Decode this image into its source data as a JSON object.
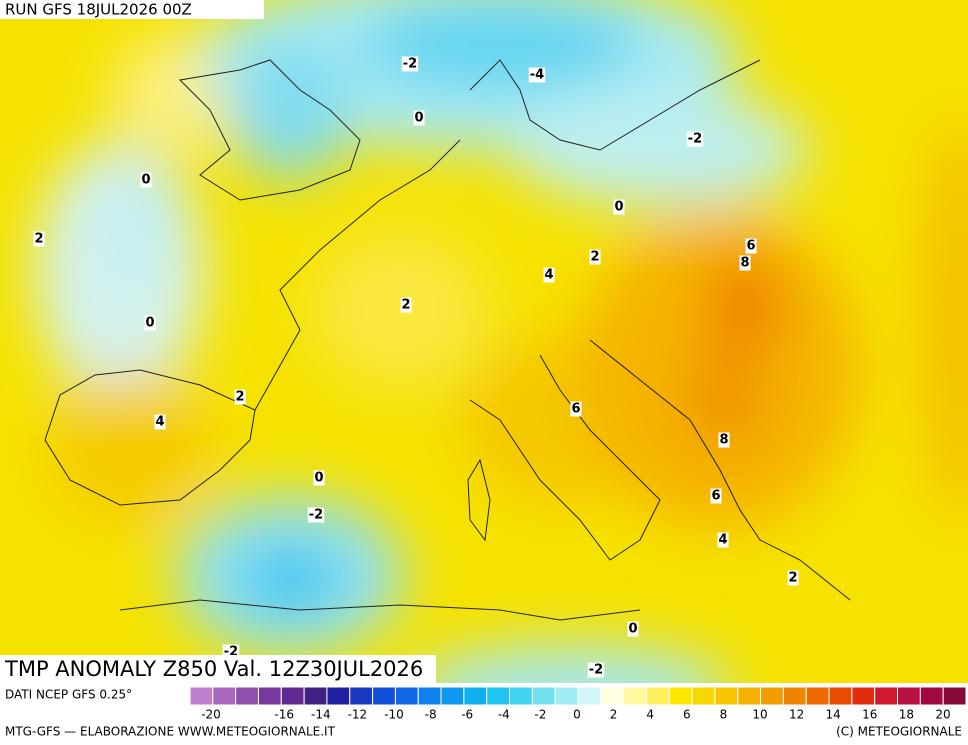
{
  "header": {
    "run": "RUN GFS 18JUL2026 00Z"
  },
  "map": {
    "title": "TMP ANOMALY Z850 Val. 12Z30JUL2026",
    "contour_labels": [
      -2,
      -4,
      0,
      -2,
      0,
      2,
      0,
      6,
      8,
      2,
      4,
      2,
      0,
      2,
      4,
      6,
      8,
      0,
      -2,
      6,
      4,
      2,
      -2,
      0,
      -2
    ]
  },
  "footer": {
    "source": "DATI NCEP GFS 0.25°",
    "credit": "MTG-GFS — ELABORAZIONE WWW.METEOGIORNALE.IT",
    "copyright": "(C) METEOGIORNALE"
  },
  "colorbar": {
    "colors": [
      "#c080d0",
      "#a868c0",
      "#9050b0",
      "#7838a0",
      "#602890",
      "#402080",
      "#2020a0",
      "#1838c0",
      "#1050d8",
      "#1068e8",
      "#1080f0",
      "#1098f0",
      "#10b0f0",
      "#20c4f0",
      "#40d4f0",
      "#70e0f0",
      "#a0ecf4",
      "#d0f6f8",
      "#ffffe0",
      "#fff8a0",
      "#fff060",
      "#ffe800",
      "#f8d800",
      "#f5c400",
      "#f5b000",
      "#f29c00",
      "#f08400",
      "#ee6a00",
      "#e84c00",
      "#e02c10",
      "#d01830",
      "#b81040",
      "#a00840",
      "#880838"
    ],
    "ticks": [
      -20,
      -16,
      -14,
      -12,
      -10,
      -8,
      -6,
      -4,
      -2,
      0,
      2,
      4,
      6,
      8,
      10,
      12,
      14,
      16,
      18,
      20
    ]
  }
}
